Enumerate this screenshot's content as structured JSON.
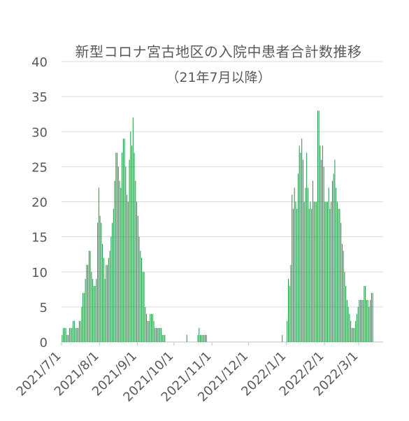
{
  "chart_data": {
    "type": "bar",
    "title": "新型コロナ宮古地区の入院中患者合計数推移",
    "subtitle": "（21年7月以降）",
    "xlabel": "",
    "ylabel": "",
    "ylim": [
      0,
      40
    ],
    "y_ticks": [
      0,
      5,
      10,
      15,
      20,
      25,
      30,
      35,
      40
    ],
    "x_range": [
      "2021-07-01",
      "2022-03-20"
    ],
    "x_tick_labels": [
      "2021/7/1",
      "2021/8/1",
      "2021/9/1",
      "2021/10/1",
      "2021/11/1",
      "2021/12/1",
      "2022/1/1",
      "2022/2/1",
      "2022/3/1"
    ],
    "grid": true,
    "legend": "none",
    "color": "#1a9641",
    "series": [
      {
        "segments": [
          {
            "start": "2021-07-01",
            "values": [
              1,
              2,
              2,
              2,
              1,
              1,
              2,
              2,
              2,
              3,
              3,
              2,
              2,
              2,
              3,
              3,
              5,
              7,
              7,
              9,
              11,
              11,
              13,
              13,
              10,
              9,
              8,
              8,
              9,
              17,
              22,
              18,
              17,
              14,
              12,
              9,
              11,
              11,
              12,
              13,
              15,
              17,
              19,
              23,
              27,
              27,
              25,
              23,
              22,
              27,
              29,
              29,
              25,
              21,
              20,
              26,
              30,
              28,
              32,
              27,
              23,
              20,
              18,
              15,
              13,
              12,
              10,
              10,
              5,
              4,
              3,
              3,
              4,
              4,
              4,
              3,
              2,
              2,
              2,
              2,
              2,
              2,
              1,
              1,
              1
            ]
          },
          {
            "start": "2021-10-11",
            "values": [
              1
            ]
          },
          {
            "start": "2021-10-20",
            "values": [
              1,
              2,
              1,
              1,
              1,
              1,
              1,
              1
            ]
          },
          {
            "start": "2021-12-28",
            "values": [
              1
            ]
          },
          {
            "start": "2022-01-01",
            "values": [
              3,
              9,
              8,
              11,
              21,
              19,
              22,
              20,
              19,
              24,
              28,
              27,
              29,
              26,
              20,
              22,
              27,
              22,
              19,
              20,
              19,
              23,
              20,
              20,
              20,
              33,
              33,
              28,
              26,
              28,
              25,
              20,
              20,
              20,
              22,
              19,
              20,
              23,
              24,
              26,
              22,
              20,
              19,
              19,
              17,
              14,
              13,
              10,
              8,
              6,
              5,
              4,
              3,
              2,
              2,
              2,
              3,
              4,
              5,
              6,
              6,
              6,
              6,
              8,
              8,
              6,
              6,
              5,
              6,
              7,
              7
            ]
          }
        ]
      }
    ]
  }
}
